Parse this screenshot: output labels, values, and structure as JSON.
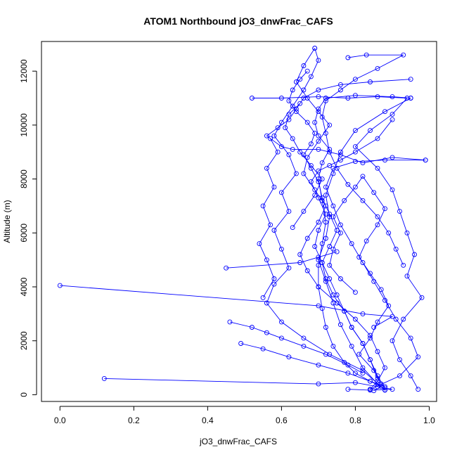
{
  "chart_data": {
    "type": "line",
    "title": "ATOM1 Northbound jO3_dnwFrac_CAFS",
    "xlabel": "jO3_dnwFrac_CAFS",
    "ylabel": "Altitude (m)",
    "xlim": [
      -0.05,
      1.02
    ],
    "ylim": [
      -250,
      13100
    ],
    "x_ticks": [
      0.0,
      0.2,
      0.4,
      0.6,
      0.8,
      1.0
    ],
    "x_tick_labels": [
      "0.0",
      "0.2",
      "0.4",
      "0.6",
      "0.8",
      "1.0"
    ],
    "y_ticks": [
      0,
      2000,
      4000,
      6000,
      8000,
      10000,
      12000
    ],
    "y_tick_labels": [
      "0",
      "2000",
      "4000",
      "6000",
      "8000",
      "10000",
      "12000"
    ],
    "grid": false,
    "legend": "none",
    "series_color": "#0000ff",
    "marker": "open-circle",
    "series": [
      {
        "points": [
          [
            0.85,
            150
          ],
          [
            0.87,
            300
          ],
          [
            0.84,
            500
          ],
          [
            0.8,
            800
          ],
          [
            0.77,
            1200
          ],
          [
            0.74,
            1800
          ],
          [
            0.72,
            2500
          ],
          [
            0.71,
            3200
          ],
          [
            0.7,
            4000
          ],
          [
            0.7,
            4800
          ],
          [
            0.71,
            5600
          ],
          [
            0.72,
            6400
          ],
          [
            0.71,
            7200
          ],
          [
            0.7,
            8000
          ],
          [
            0.71,
            8600
          ],
          [
            0.73,
            9100
          ],
          [
            0.7,
            9600
          ],
          [
            0.69,
            10100
          ],
          [
            0.7,
            10600
          ],
          [
            0.72,
            11000
          ],
          [
            0.8,
            11100
          ],
          [
            0.9,
            11050
          ],
          [
            0.95,
            11000
          ]
        ]
      },
      {
        "points": [
          [
            0.95,
            11000
          ],
          [
            0.88,
            10500
          ],
          [
            0.8,
            9800
          ],
          [
            0.76,
            9000
          ],
          [
            0.74,
            8200
          ],
          [
            0.72,
            7400
          ],
          [
            0.73,
            6600
          ],
          [
            0.72,
            5800
          ],
          [
            0.7,
            5000
          ],
          [
            0.72,
            4200
          ],
          [
            0.74,
            3400
          ],
          [
            0.76,
            2600
          ],
          [
            0.79,
            1800
          ],
          [
            0.82,
            1000
          ],
          [
            0.86,
            400
          ],
          [
            0.88,
            180
          ]
        ]
      },
      {
        "points": [
          [
            0.12,
            600
          ],
          [
            0.7,
            400
          ],
          [
            0.8,
            450
          ],
          [
            0.86,
            300
          ],
          [
            0.9,
            200
          ],
          [
            0.84,
            170
          ],
          [
            0.78,
            200
          ]
        ]
      },
      {
        "points": [
          [
            0.0,
            4050
          ],
          [
            0.7,
            3300
          ],
          [
            0.82,
            3000
          ],
          [
            0.9,
            2900
          ],
          [
            0.85,
            2500
          ]
        ]
      },
      {
        "points": [
          [
            0.45,
            4700
          ],
          [
            0.65,
            4900
          ],
          [
            0.7,
            5100
          ],
          [
            0.75,
            5300
          ]
        ]
      },
      {
        "points": [
          [
            0.88,
            170
          ],
          [
            0.82,
            900
          ],
          [
            0.73,
            1500
          ],
          [
            0.66,
            2100
          ],
          [
            0.6,
            2700
          ],
          [
            0.56,
            3400
          ],
          [
            0.58,
            4100
          ],
          [
            0.62,
            4700
          ],
          [
            0.6,
            5400
          ],
          [
            0.58,
            6100
          ],
          [
            0.62,
            6800
          ],
          [
            0.6,
            7500
          ],
          [
            0.64,
            8200
          ],
          [
            0.62,
            8900
          ],
          [
            0.58,
            9600
          ],
          [
            0.6,
            10100
          ],
          [
            0.63,
            10700
          ],
          [
            0.66,
            11300
          ],
          [
            0.68,
            11800
          ],
          [
            0.7,
            12400
          ],
          [
            0.69,
            12850
          ]
        ]
      },
      {
        "points": [
          [
            0.69,
            12850
          ],
          [
            0.66,
            12200
          ],
          [
            0.64,
            11600
          ],
          [
            0.67,
            11000
          ],
          [
            0.7,
            10500
          ],
          [
            0.73,
            10000
          ],
          [
            0.7,
            9400
          ],
          [
            0.67,
            8800
          ],
          [
            0.66,
            8200
          ],
          [
            0.69,
            7600
          ],
          [
            0.72,
            7000
          ],
          [
            0.7,
            6400
          ],
          [
            0.67,
            5800
          ],
          [
            0.65,
            5200
          ],
          [
            0.67,
            4600
          ],
          [
            0.7,
            4000
          ],
          [
            0.75,
            3400
          ],
          [
            0.8,
            2800
          ],
          [
            0.84,
            2200
          ],
          [
            0.86,
            1600
          ],
          [
            0.88,
            1000
          ],
          [
            0.86,
            500
          ],
          [
            0.84,
            200
          ]
        ]
      },
      {
        "points": [
          [
            0.84,
            200
          ],
          [
            0.92,
            700
          ],
          [
            0.97,
            1400
          ],
          [
            0.95,
            2100
          ],
          [
            0.91,
            2800
          ],
          [
            0.88,
            3500
          ],
          [
            0.85,
            4200
          ],
          [
            0.82,
            4900
          ],
          [
            0.79,
            5600
          ],
          [
            0.76,
            6300
          ],
          [
            0.74,
            7000
          ],
          [
            0.72,
            7700
          ],
          [
            0.74,
            8400
          ],
          [
            0.8,
            8650
          ],
          [
            0.88,
            8700
          ],
          [
            0.99,
            8700
          ]
        ]
      },
      {
        "points": [
          [
            0.99,
            8700
          ],
          [
            0.9,
            8800
          ],
          [
            0.82,
            8600
          ],
          [
            0.76,
            8900
          ],
          [
            0.7,
            9100
          ],
          [
            0.63,
            9100
          ],
          [
            0.6,
            9200
          ],
          [
            0.56,
            9600
          ],
          [
            0.59,
            9900
          ],
          [
            0.62,
            10200
          ],
          [
            0.64,
            10600
          ],
          [
            0.66,
            11000
          ],
          [
            0.7,
            11300
          ],
          [
            0.76,
            11500
          ],
          [
            0.84,
            11600
          ],
          [
            0.95,
            11700
          ]
        ]
      },
      {
        "points": [
          [
            0.52,
            11000
          ],
          [
            0.6,
            11000
          ],
          [
            0.7,
            11050
          ],
          [
            0.78,
            11000
          ],
          [
            0.86,
            11050
          ],
          [
            0.94,
            11000
          ],
          [
            0.9,
            10400
          ],
          [
            0.84,
            9800
          ],
          [
            0.8,
            9200
          ],
          [
            0.86,
            8400
          ],
          [
            0.9,
            7600
          ],
          [
            0.92,
            6800
          ],
          [
            0.94,
            6000
          ],
          [
            0.96,
            5200
          ],
          [
            0.94,
            4400
          ],
          [
            0.98,
            3600
          ],
          [
            0.93,
            2800
          ],
          [
            0.9,
            2000
          ],
          [
            0.92,
            1300
          ],
          [
            0.95,
            700
          ],
          [
            0.97,
            200
          ]
        ]
      },
      {
        "points": [
          [
            0.49,
            1900
          ],
          [
            0.55,
            1700
          ],
          [
            0.62,
            1400
          ],
          [
            0.7,
            1100
          ],
          [
            0.78,
            800
          ],
          [
            0.84,
            500
          ],
          [
            0.88,
            300
          ]
        ]
      },
      {
        "points": [
          [
            0.46,
            2700
          ],
          [
            0.52,
            2500
          ],
          [
            0.56,
            2300
          ],
          [
            0.6,
            2100
          ],
          [
            0.66,
            1800
          ],
          [
            0.72,
            1500
          ],
          [
            0.78,
            1100
          ],
          [
            0.82,
            800
          ]
        ]
      },
      {
        "points": [
          [
            0.55,
            3600
          ],
          [
            0.58,
            4300
          ],
          [
            0.56,
            5000
          ],
          [
            0.54,
            5600
          ],
          [
            0.57,
            6300
          ],
          [
            0.55,
            7000
          ],
          [
            0.58,
            7700
          ],
          [
            0.56,
            8400
          ],
          [
            0.59,
            9000
          ],
          [
            0.57,
            9500
          ]
        ]
      },
      {
        "points": [
          [
            0.78,
            12500
          ],
          [
            0.83,
            12600
          ],
          [
            0.93,
            12600
          ],
          [
            0.86,
            12100
          ],
          [
            0.8,
            11700
          ],
          [
            0.76,
            11300
          ],
          [
            0.72,
            10900
          ],
          [
            0.71,
            10300
          ],
          [
            0.72,
            9700
          ],
          [
            0.73,
            9000
          ],
          [
            0.75,
            8400
          ],
          [
            0.78,
            7800
          ],
          [
            0.82,
            7200
          ],
          [
            0.86,
            6600
          ],
          [
            0.89,
            6000
          ],
          [
            0.91,
            5400
          ],
          [
            0.93,
            4800
          ]
        ]
      },
      {
        "points": [
          [
            0.8,
            3800
          ],
          [
            0.76,
            4300
          ],
          [
            0.73,
            4800
          ],
          [
            0.74,
            5400
          ],
          [
            0.76,
            6000
          ],
          [
            0.74,
            6600
          ],
          [
            0.77,
            7200
          ],
          [
            0.8,
            7700
          ],
          [
            0.82,
            8100
          ],
          [
            0.85,
            7500
          ],
          [
            0.88,
            6900
          ],
          [
            0.86,
            6300
          ],
          [
            0.83,
            5700
          ],
          [
            0.81,
            5100
          ],
          [
            0.84,
            4500
          ],
          [
            0.87,
            3900
          ],
          [
            0.89,
            3300
          ],
          [
            0.86,
            2700
          ],
          [
            0.84,
            2100
          ],
          [
            0.81,
            1500
          ],
          [
            0.85,
            900
          ],
          [
            0.87,
            400
          ]
        ]
      },
      {
        "points": [
          [
            0.63,
            6200
          ],
          [
            0.66,
            6800
          ],
          [
            0.69,
            7400
          ],
          [
            0.71,
            8000
          ],
          [
            0.68,
            8500
          ],
          [
            0.65,
            9000
          ],
          [
            0.63,
            9500
          ],
          [
            0.61,
            9900
          ],
          [
            0.62,
            10400
          ],
          [
            0.65,
            10800
          ]
        ]
      },
      {
        "points": [
          [
            0.9,
            10200
          ],
          [
            0.86,
            9500
          ],
          [
            0.8,
            9000
          ],
          [
            0.76,
            8700
          ],
          [
            0.73,
            8500
          ],
          [
            0.7,
            8300
          ],
          [
            0.68,
            7900
          ],
          [
            0.7,
            7300
          ],
          [
            0.72,
            6700
          ],
          [
            0.7,
            6100
          ],
          [
            0.69,
            5500
          ],
          [
            0.71,
            4900
          ],
          [
            0.73,
            4300
          ],
          [
            0.75,
            3700
          ],
          [
            0.77,
            3100
          ],
          [
            0.79,
            2500
          ],
          [
            0.82,
            1900
          ],
          [
            0.84,
            1300
          ],
          [
            0.86,
            700
          ],
          [
            0.88,
            250
          ]
        ]
      },
      {
        "points": [
          [
            0.67,
            12000
          ],
          [
            0.65,
            11700
          ],
          [
            0.63,
            11300
          ],
          [
            0.62,
            10900
          ],
          [
            0.64,
            10500
          ],
          [
            0.67,
            10100
          ],
          [
            0.69,
            9700
          ],
          [
            0.68,
            9300
          ],
          [
            0.66,
            8900
          ],
          [
            0.68,
            8400
          ],
          [
            0.7,
            7900
          ],
          [
            0.71,
            7300
          ],
          [
            0.73,
            6700
          ],
          [
            0.75,
            6100
          ],
          [
            0.73,
            5500
          ],
          [
            0.71,
            4900
          ],
          [
            0.72,
            4300
          ],
          [
            0.74,
            3700
          ],
          [
            0.77,
            3100
          ],
          [
            0.79,
            2500
          ],
          [
            0.82,
            1900
          ],
          [
            0.84,
            1300
          ],
          [
            0.86,
            600
          ]
        ]
      }
    ]
  }
}
